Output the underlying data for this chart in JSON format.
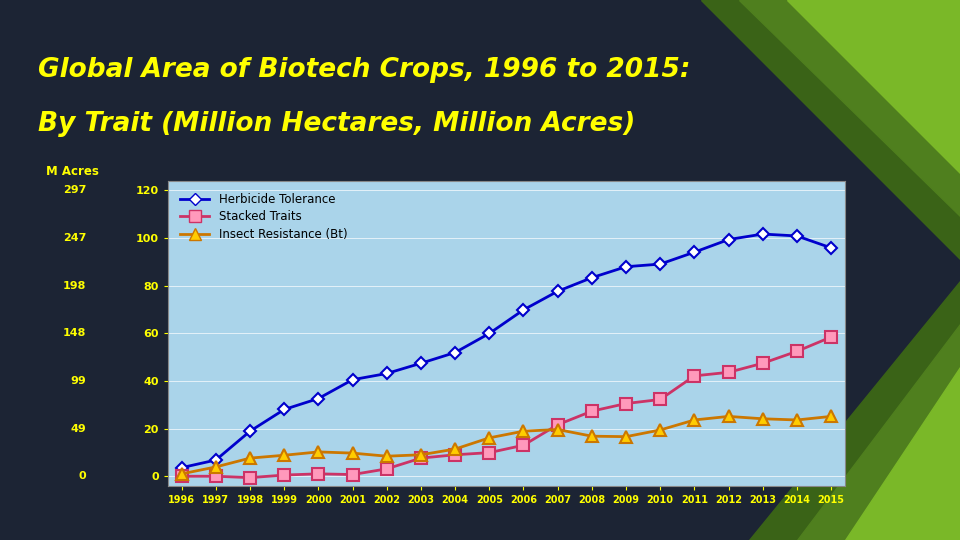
{
  "title_line1": "Global Area of Biotech Crops, 1996 to 2015:",
  "title_line2": "By Trait (Million Hectares, Million Acres)",
  "ylabel_left": "M Acres",
  "years": [
    1996,
    1997,
    1998,
    1999,
    2000,
    2001,
    2002,
    2003,
    2004,
    2005,
    2006,
    2007,
    2008,
    2009,
    2010,
    2011,
    2012,
    2013,
    2014,
    2015
  ],
  "herbicide_tolerance": [
    3.7,
    6.9,
    19.0,
    28.1,
    32.7,
    40.6,
    43.2,
    47.5,
    52.0,
    60.0,
    69.9,
    77.7,
    83.4,
    88.0,
    89.1,
    94.1,
    99.4,
    101.7,
    100.9,
    95.9
  ],
  "stacked_traits": [
    0.1,
    0.1,
    -0.5,
    0.6,
    1.1,
    0.8,
    3.2,
    7.7,
    9.1,
    10.0,
    13.1,
    21.7,
    27.4,
    30.6,
    32.3,
    42.2,
    43.7,
    47.5,
    52.5,
    58.5
  ],
  "insect_resistance": [
    1.1,
    4.0,
    7.7,
    8.9,
    10.3,
    9.8,
    8.5,
    9.1,
    11.5,
    16.2,
    19.0,
    19.7,
    16.9,
    16.7,
    19.5,
    23.7,
    25.2,
    24.2,
    23.7,
    25.2
  ],
  "yticks_mha": [
    0,
    20,
    40,
    60,
    80,
    100,
    120
  ],
  "yticks_mac": [
    0,
    49,
    99,
    148,
    198,
    247,
    297
  ],
  "background_color": "#1c2434",
  "plot_bg_color": "#aad4ea",
  "title_color": "#ffff00",
  "ylabel_color": "#ffff00",
  "tick_color": "#ffff00",
  "ht_color": "#0000cc",
  "st_color": "#cc3366",
  "st_marker_color": "#ff99bb",
  "ir_color": "#cc7700",
  "ir_marker_color": "#ffcc00",
  "legend_ht": "Herbicide Tolerance",
  "legend_st": "Stacked Traits",
  "legend_ir": "Insect Resistance (Bt)",
  "green_dark1": "#3a6317",
  "green_mid": "#4f7f1e",
  "green_light": "#7ab828",
  "green_dark2": "#2d5012"
}
